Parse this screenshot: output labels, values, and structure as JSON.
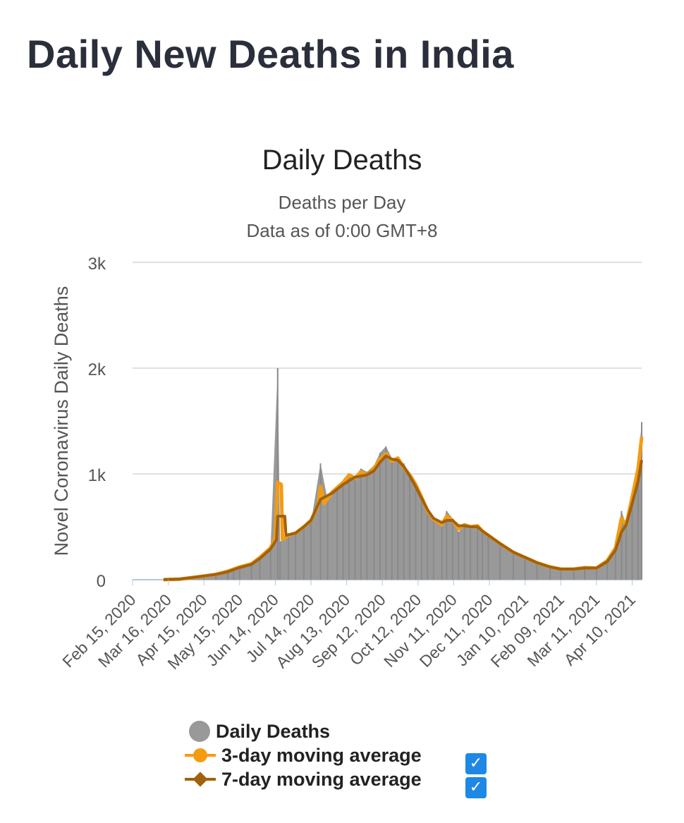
{
  "page": {
    "title": "Daily New Deaths in India"
  },
  "colors": {
    "bars": "#999999",
    "ma3": "#f39c12",
    "ma7": "#a3610b",
    "grid": "#e0e0e0",
    "checkbox": "#1e88e5"
  },
  "legend": {
    "items": [
      {
        "label": "Daily Deaths",
        "icon": "circle-marker-icon",
        "checked": null
      },
      {
        "label": "3-day moving average",
        "icon": "circle-line-marker-icon",
        "checked": true
      },
      {
        "label": "7-day moving average",
        "icon": "diamond-line-marker-icon",
        "checked": true
      }
    ]
  },
  "chart_data": {
    "type": "area",
    "title": "Daily Deaths",
    "subtitle": [
      "Deaths per Day",
      "Data as of 0:00 GMT+8"
    ],
    "ylabel": "Novel Coronavirus Daily Deaths",
    "xlabel": "",
    "ylim": [
      0,
      3000
    ],
    "yticks": [
      0,
      1000,
      2000,
      3000
    ],
    "ytick_labels": [
      "0",
      "1k",
      "2k",
      "3k"
    ],
    "xlim": [
      "2020-02-15",
      "2021-04-18"
    ],
    "xtick_labels": [
      "Feb 15, 2020",
      "Mar 16, 2020",
      "Apr 15, 2020",
      "May 15, 2020",
      "Jun 14, 2020",
      "Jul 14, 2020",
      "Aug 13, 2020",
      "Sep 12, 2020",
      "Oct 12, 2020",
      "Nov 11, 2020",
      "Dec 11, 2020",
      "Jan 10, 2021",
      "Feb 09, 2021",
      "Mar 11, 2021",
      "Apr 10, 2021"
    ],
    "grid": true,
    "legend_position": "bottom",
    "series": [
      {
        "name": "Daily Deaths",
        "type": "bar",
        "points": [
          [
            "2020-03-12",
            1
          ],
          [
            "2020-03-25",
            5
          ],
          [
            "2020-04-05",
            20
          ],
          [
            "2020-04-15",
            35
          ],
          [
            "2020-04-25",
            50
          ],
          [
            "2020-05-05",
            75
          ],
          [
            "2020-05-10",
            110
          ],
          [
            "2020-05-15",
            120
          ],
          [
            "2020-05-25",
            150
          ],
          [
            "2020-06-01",
            210
          ],
          [
            "2020-06-10",
            300
          ],
          [
            "2020-06-16",
            2000
          ],
          [
            "2020-06-18",
            360
          ],
          [
            "2020-06-25",
            420
          ],
          [
            "2020-07-01",
            440
          ],
          [
            "2020-07-08",
            500
          ],
          [
            "2020-07-14",
            540
          ],
          [
            "2020-07-22",
            1100
          ],
          [
            "2020-07-28",
            750
          ],
          [
            "2020-08-05",
            880
          ],
          [
            "2020-08-10",
            920
          ],
          [
            "2020-08-15",
            1000
          ],
          [
            "2020-08-20",
            980
          ],
          [
            "2020-08-25",
            1050
          ],
          [
            "2020-08-30",
            1020
          ],
          [
            "2020-09-05",
            1080
          ],
          [
            "2020-09-10",
            1200
          ],
          [
            "2020-09-15",
            1260
          ],
          [
            "2020-09-20",
            1150
          ],
          [
            "2020-09-25",
            1120
          ],
          [
            "2020-09-30",
            1100
          ],
          [
            "2020-10-05",
            1000
          ],
          [
            "2020-10-10",
            900
          ],
          [
            "2020-10-15",
            780
          ],
          [
            "2020-10-20",
            640
          ],
          [
            "2020-10-25",
            560
          ],
          [
            "2020-11-01",
            500
          ],
          [
            "2020-11-05",
            650
          ],
          [
            "2020-11-10",
            580
          ],
          [
            "2020-11-15",
            450
          ],
          [
            "2020-11-20",
            520
          ],
          [
            "2020-11-25",
            500
          ],
          [
            "2020-12-01",
            520
          ],
          [
            "2020-12-05",
            470
          ],
          [
            "2020-12-10",
            420
          ],
          [
            "2020-12-20",
            340
          ],
          [
            "2020-12-31",
            260
          ],
          [
            "2021-01-10",
            210
          ],
          [
            "2021-01-20",
            160
          ],
          [
            "2021-01-31",
            120
          ],
          [
            "2021-02-09",
            100
          ],
          [
            "2021-02-20",
            100
          ],
          [
            "2021-03-01",
            115
          ],
          [
            "2021-03-11",
            110
          ],
          [
            "2021-03-20",
            180
          ],
          [
            "2021-03-27",
            300
          ],
          [
            "2021-04-01",
            650
          ],
          [
            "2021-04-05",
            520
          ],
          [
            "2021-04-10",
            780
          ],
          [
            "2021-04-15",
            1100
          ],
          [
            "2021-04-18",
            1490
          ]
        ]
      },
      {
        "name": "3-day moving average",
        "type": "line",
        "points": [
          [
            "2020-03-12",
            1
          ],
          [
            "2020-03-25",
            5
          ],
          [
            "2020-04-05",
            20
          ],
          [
            "2020-04-15",
            35
          ],
          [
            "2020-04-25",
            50
          ],
          [
            "2020-05-05",
            80
          ],
          [
            "2020-05-15",
            120
          ],
          [
            "2020-05-25",
            150
          ],
          [
            "2020-06-01",
            210
          ],
          [
            "2020-06-10",
            300
          ],
          [
            "2020-06-14",
            400
          ],
          [
            "2020-06-16",
            920
          ],
          [
            "2020-06-19",
            900
          ],
          [
            "2020-06-20",
            380
          ],
          [
            "2020-06-25",
            420
          ],
          [
            "2020-07-01",
            440
          ],
          [
            "2020-07-08",
            500
          ],
          [
            "2020-07-14",
            560
          ],
          [
            "2020-07-20",
            700
          ],
          [
            "2020-07-22",
            880
          ],
          [
            "2020-07-25",
            720
          ],
          [
            "2020-08-01",
            830
          ],
          [
            "2020-08-10",
            920
          ],
          [
            "2020-08-15",
            990
          ],
          [
            "2020-08-20",
            960
          ],
          [
            "2020-08-25",
            1020
          ],
          [
            "2020-08-30",
            990
          ],
          [
            "2020-09-05",
            1050
          ],
          [
            "2020-09-10",
            1140
          ],
          [
            "2020-09-15",
            1190
          ],
          [
            "2020-09-20",
            1120
          ],
          [
            "2020-09-25",
            1150
          ],
          [
            "2020-09-30",
            1060
          ],
          [
            "2020-10-05",
            990
          ],
          [
            "2020-10-10",
            900
          ],
          [
            "2020-10-15",
            780
          ],
          [
            "2020-10-20",
            650
          ],
          [
            "2020-10-25",
            570
          ],
          [
            "2020-11-01",
            520
          ],
          [
            "2020-11-05",
            600
          ],
          [
            "2020-11-10",
            560
          ],
          [
            "2020-11-15",
            480
          ],
          [
            "2020-11-20",
            520
          ],
          [
            "2020-11-25",
            500
          ],
          [
            "2020-12-01",
            510
          ],
          [
            "2020-12-05",
            460
          ],
          [
            "2020-12-10",
            420
          ],
          [
            "2020-12-20",
            340
          ],
          [
            "2020-12-31",
            260
          ],
          [
            "2021-01-10",
            210
          ],
          [
            "2021-01-20",
            160
          ],
          [
            "2021-01-31",
            120
          ],
          [
            "2021-02-09",
            100
          ],
          [
            "2021-02-20",
            100
          ],
          [
            "2021-03-01",
            115
          ],
          [
            "2021-03-11",
            110
          ],
          [
            "2021-03-20",
            180
          ],
          [
            "2021-03-27",
            300
          ],
          [
            "2021-04-01",
            580
          ],
          [
            "2021-04-05",
            520
          ],
          [
            "2021-04-10",
            780
          ],
          [
            "2021-04-15",
            1050
          ],
          [
            "2021-04-18",
            1350
          ]
        ]
      },
      {
        "name": "7-day moving average",
        "type": "line",
        "points": [
          [
            "2020-03-12",
            1
          ],
          [
            "2020-03-25",
            5
          ],
          [
            "2020-04-05",
            20
          ],
          [
            "2020-04-15",
            35
          ],
          [
            "2020-04-25",
            50
          ],
          [
            "2020-05-05",
            75
          ],
          [
            "2020-05-15",
            115
          ],
          [
            "2020-05-25",
            145
          ],
          [
            "2020-06-01",
            200
          ],
          [
            "2020-06-10",
            290
          ],
          [
            "2020-06-15",
            380
          ],
          [
            "2020-06-16",
            600
          ],
          [
            "2020-06-22",
            600
          ],
          [
            "2020-06-23",
            420
          ],
          [
            "2020-07-01",
            440
          ],
          [
            "2020-07-08",
            500
          ],
          [
            "2020-07-14",
            560
          ],
          [
            "2020-07-22",
            760
          ],
          [
            "2020-08-01",
            820
          ],
          [
            "2020-08-10",
            900
          ],
          [
            "2020-08-20",
            970
          ],
          [
            "2020-08-30",
            990
          ],
          [
            "2020-09-05",
            1030
          ],
          [
            "2020-09-10",
            1110
          ],
          [
            "2020-09-15",
            1170
          ],
          [
            "2020-09-20",
            1140
          ],
          [
            "2020-09-25",
            1130
          ],
          [
            "2020-09-30",
            1070
          ],
          [
            "2020-10-05",
            980
          ],
          [
            "2020-10-10",
            880
          ],
          [
            "2020-10-15",
            770
          ],
          [
            "2020-10-20",
            660
          ],
          [
            "2020-10-25",
            580
          ],
          [
            "2020-11-01",
            540
          ],
          [
            "2020-11-05",
            560
          ],
          [
            "2020-11-10",
            560
          ],
          [
            "2020-11-15",
            510
          ],
          [
            "2020-11-20",
            510
          ],
          [
            "2020-11-25",
            500
          ],
          [
            "2020-12-01",
            500
          ],
          [
            "2020-12-05",
            460
          ],
          [
            "2020-12-10",
            420
          ],
          [
            "2020-12-20",
            340
          ],
          [
            "2020-12-31",
            260
          ],
          [
            "2021-01-10",
            210
          ],
          [
            "2021-01-20",
            160
          ],
          [
            "2021-01-31",
            120
          ],
          [
            "2021-02-09",
            100
          ],
          [
            "2021-02-20",
            100
          ],
          [
            "2021-03-01",
            110
          ],
          [
            "2021-03-11",
            110
          ],
          [
            "2021-03-20",
            170
          ],
          [
            "2021-03-27",
            280
          ],
          [
            "2021-04-01",
            450
          ],
          [
            "2021-04-05",
            520
          ],
          [
            "2021-04-10",
            720
          ],
          [
            "2021-04-15",
            930
          ],
          [
            "2021-04-18",
            1130
          ]
        ]
      }
    ]
  }
}
